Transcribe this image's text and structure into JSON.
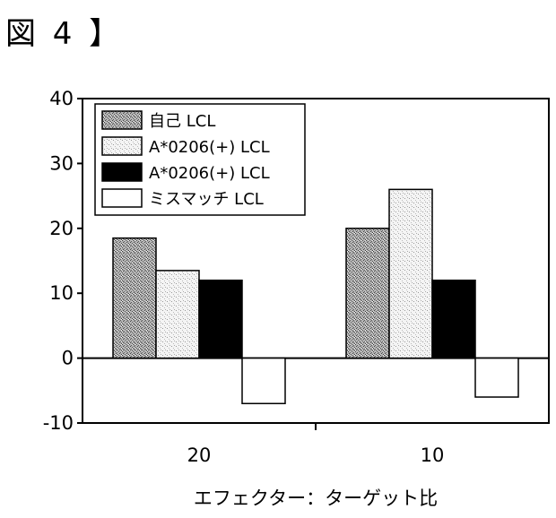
{
  "figure_label": "図 4 】",
  "chart_data": {
    "type": "bar",
    "title": "",
    "xlabel": "エフェクター：ターゲット比",
    "ylabel": "",
    "ylim": [
      -10,
      40
    ],
    "yticks": [
      -10,
      0,
      10,
      20,
      30,
      40
    ],
    "grid": false,
    "legend_position": "top-left",
    "categories": [
      "20",
      "10"
    ],
    "series": [
      {
        "name": "自己 LCL",
        "values": [
          18.5,
          20
        ],
        "fill": "dark-stipple"
      },
      {
        "name": "A*0206(+) LCL",
        "values": [
          13.5,
          26
        ],
        "fill": "light-stipple"
      },
      {
        "name": "A*0206(+) LCL",
        "values": [
          12,
          12
        ],
        "fill": "solid-black"
      },
      {
        "name": "ミスマッチ LCL",
        "values": [
          -7,
          -6
        ],
        "fill": "white"
      }
    ]
  }
}
